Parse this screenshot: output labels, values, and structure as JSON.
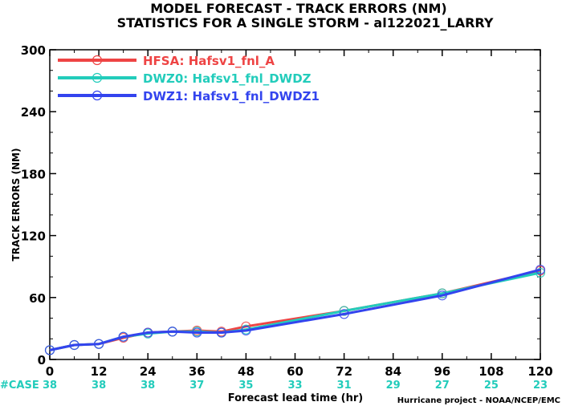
{
  "chart_data": {
    "type": "line",
    "title": "MODEL FORECAST - TRACK ERRORS (NM)",
    "subtitle": "STATISTICS FOR A SINGLE STORM - al122021_LARRY",
    "xlabel": "Forecast lead time (hr)",
    "ylabel": "TRACK ERRORS (NM)",
    "xlim": [
      0,
      120
    ],
    "ylim": [
      0,
      300
    ],
    "xticks": [
      0,
      12,
      24,
      36,
      48,
      60,
      72,
      84,
      96,
      108,
      120
    ],
    "yticks": [
      0,
      60,
      120,
      180,
      240,
      300
    ],
    "ytick_labels": [
      "0",
      "60",
      "120",
      "180",
      "240",
      "300"
    ],
    "grid": false,
    "legend_position": "top-left",
    "series": [
      {
        "name": "HFSA: Hafsv1_fnl_A",
        "color": "#ee4444",
        "x": [
          0,
          6,
          12,
          18,
          24,
          30,
          36,
          42,
          48,
          72,
          96,
          120
        ],
        "y": [
          9,
          14,
          15,
          21,
          26,
          27,
          28,
          27,
          32,
          47,
          64,
          86
        ]
      },
      {
        "name": "DWZ0: Hafsv1_fnl_DWDZ",
        "color": "#22ccbb",
        "x": [
          0,
          6,
          12,
          18,
          24,
          30,
          36,
          42,
          48,
          72,
          96,
          120
        ],
        "y": [
          9,
          14,
          15,
          22,
          25,
          27,
          27,
          26,
          29,
          47,
          64,
          84
        ]
      },
      {
        "name": "DWZ1: Hafsv1_fnl_DWDZ1",
        "color": "#3344ee",
        "x": [
          0,
          6,
          12,
          18,
          24,
          30,
          36,
          42,
          48,
          72,
          96,
          120
        ],
        "y": [
          9,
          14,
          15,
          22,
          26,
          27,
          26,
          26,
          28,
          44,
          62,
          87
        ]
      }
    ],
    "case_label": "#CASE",
    "case_color": "#22ccbb",
    "case_x": [
      0,
      12,
      24,
      36,
      48,
      60,
      72,
      84,
      96,
      108,
      120
    ],
    "case_counts": [
      "38",
      "38",
      "38",
      "37",
      "35",
      "33",
      "31",
      "29",
      "27",
      "25",
      "23"
    ],
    "credit": "Hurricane project - NOAA/NCEP/EMC"
  }
}
